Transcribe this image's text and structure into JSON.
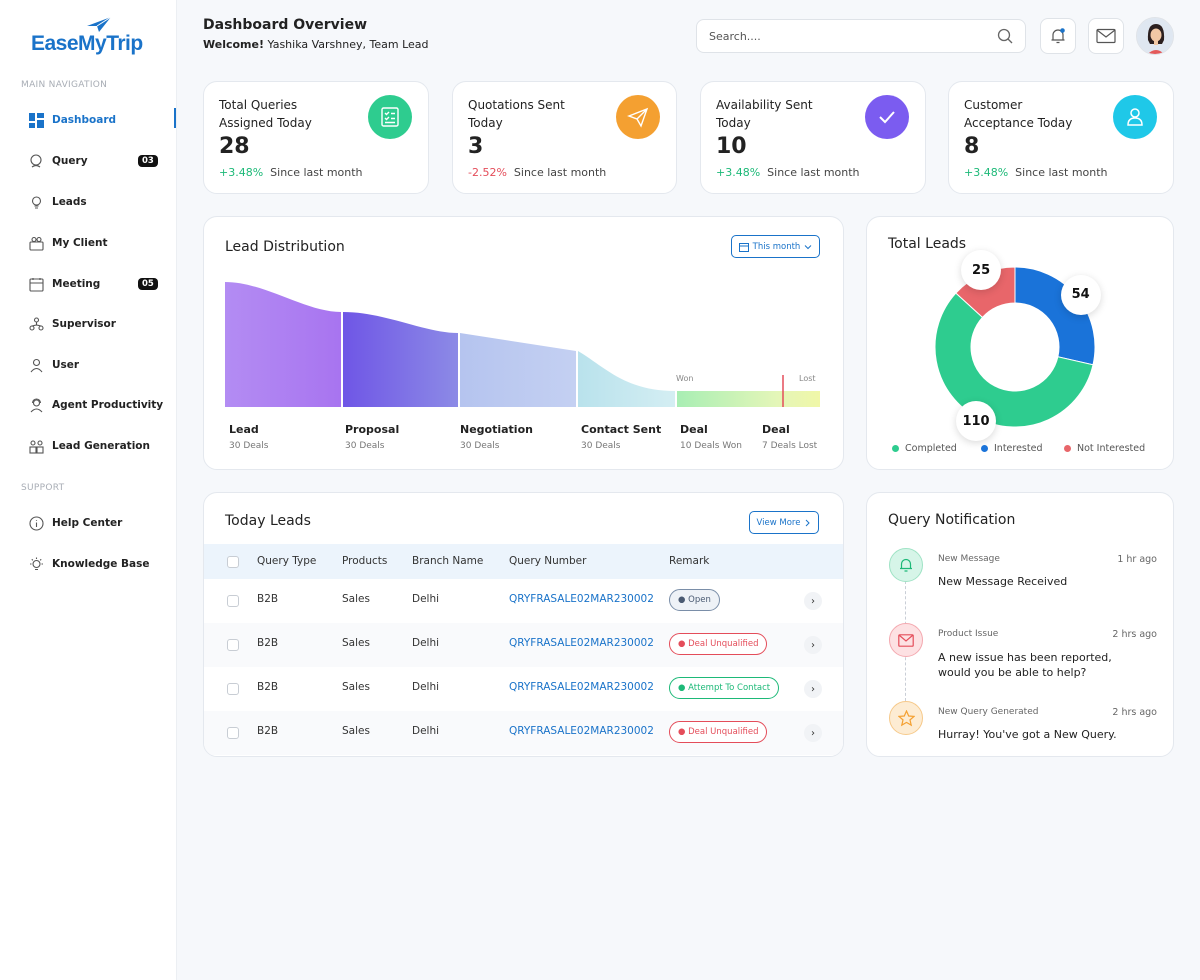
{
  "brand": {
    "name": "EaseMyTrip"
  },
  "sidebar": {
    "main_label": "MAIN NAVIGATION",
    "support_label": "SUPPORT",
    "items": [
      {
        "label": "Dashboard",
        "icon": "grid-icon",
        "active": true
      },
      {
        "label": "Query",
        "icon": "query-icon",
        "badge": "03"
      },
      {
        "label": "Leads",
        "icon": "bulb-icon"
      },
      {
        "label": "My Client",
        "icon": "client-icon"
      },
      {
        "label": "Meeting",
        "icon": "calendar-icon",
        "badge": "05"
      },
      {
        "label": "Supervisor",
        "icon": "supervisor-icon"
      },
      {
        "label": "User",
        "icon": "user-icon"
      },
      {
        "label": "Agent Productivity",
        "icon": "agent-icon"
      },
      {
        "label": "Lead Generation",
        "icon": "lead-gen-icon"
      }
    ],
    "support_items": [
      {
        "label": "Help Center",
        "icon": "info-icon"
      },
      {
        "label": "Knowledge Base",
        "icon": "lightbulb-icon"
      }
    ]
  },
  "header": {
    "title": "Dashboard Overview",
    "welcome_bold": "Welcome!",
    "welcome_text": " Yashika Varshney, Team Lead",
    "search_placeholder": "Search...."
  },
  "stats": [
    {
      "label": "Total Queries Assigned Today",
      "value": "28",
      "change": "+3.48%",
      "trend": "up",
      "since": "Since last month",
      "icon": "checklist-icon",
      "color": "#2ecc8f"
    },
    {
      "label": "Quotations Sent Today",
      "value": "3",
      "change": "-2.52%",
      "trend": "down",
      "since": "Since last month",
      "icon": "paper-plane-icon",
      "color": "#f4a031"
    },
    {
      "label": "Availability Sent Today",
      "value": "10",
      "change": "+3.48%",
      "trend": "up",
      "since": "Since last month",
      "icon": "check-icon",
      "color": "#7b5cf0"
    },
    {
      "label": "Customer Acceptance Today",
      "value": "8",
      "change": "+3.48%",
      "trend": "up",
      "since": "Since last month",
      "icon": "person-icon",
      "color": "#1fc8e8"
    }
  ],
  "lead_distribution": {
    "title": "Lead Distribution",
    "filter": "This month",
    "won_label": "Won",
    "lost_label": "Lost",
    "stages": [
      {
        "name": "Lead",
        "sub": "30 Deals"
      },
      {
        "name": "Proposal",
        "sub": "30 Deals"
      },
      {
        "name": "Negotiation",
        "sub": "30 Deals"
      },
      {
        "name": "Contact Sent",
        "sub": "30 Deals"
      },
      {
        "name": "Deal",
        "sub": "10 Deals Won"
      },
      {
        "name": "Deal",
        "sub": "7 Deals Lost"
      }
    ]
  },
  "total_leads": {
    "title": "Total Leads",
    "legend": [
      "Completed",
      "Interested",
      "Not Interested"
    ]
  },
  "chart_data": {
    "type": "pie",
    "categories": [
      "Completed",
      "Interested",
      "Not Interested"
    ],
    "values": [
      110,
      54,
      25
    ],
    "colors": [
      "#2ecc8f",
      "#1a73d9",
      "#e8666a"
    ],
    "title": "Total Leads"
  },
  "today_leads": {
    "title": "Today Leads",
    "view_more": "View More",
    "columns": [
      "Query Type",
      "Products",
      "Branch Name",
      "Query Number",
      "Remark"
    ],
    "rows": [
      {
        "type": "B2B",
        "product": "Sales",
        "branch": "Delhi",
        "number": "QRYFRASALE02MAR230002",
        "remark": "Open",
        "status": "open"
      },
      {
        "type": "B2B",
        "product": "Sales",
        "branch": "Delhi",
        "number": "QRYFRASALE02MAR230002",
        "remark": "Deal Unqualified",
        "status": "unq"
      },
      {
        "type": "B2B",
        "product": "Sales",
        "branch": "Delhi",
        "number": "QRYFRASALE02MAR230002",
        "remark": "Attempt To Contact",
        "status": "att"
      },
      {
        "type": "B2B",
        "product": "Sales",
        "branch": "Delhi",
        "number": "QRYFRASALE02MAR230002",
        "remark": "Deal Unqualified",
        "status": "unq"
      }
    ]
  },
  "notifications": {
    "title": "Query Notification",
    "items": [
      {
        "title": "New Message",
        "time": "1 hr ago",
        "text": "New Message Received",
        "icon": "bell-icon"
      },
      {
        "title": "Product Issue",
        "time": "2 hrs ago",
        "text": "A new issue has been reported, would you be able to help?",
        "icon": "mail-icon"
      },
      {
        "title": "New Query Generated",
        "time": "2 hrs ago",
        "text": "Hurray! You've got a New Query.",
        "icon": "star-icon"
      }
    ]
  }
}
